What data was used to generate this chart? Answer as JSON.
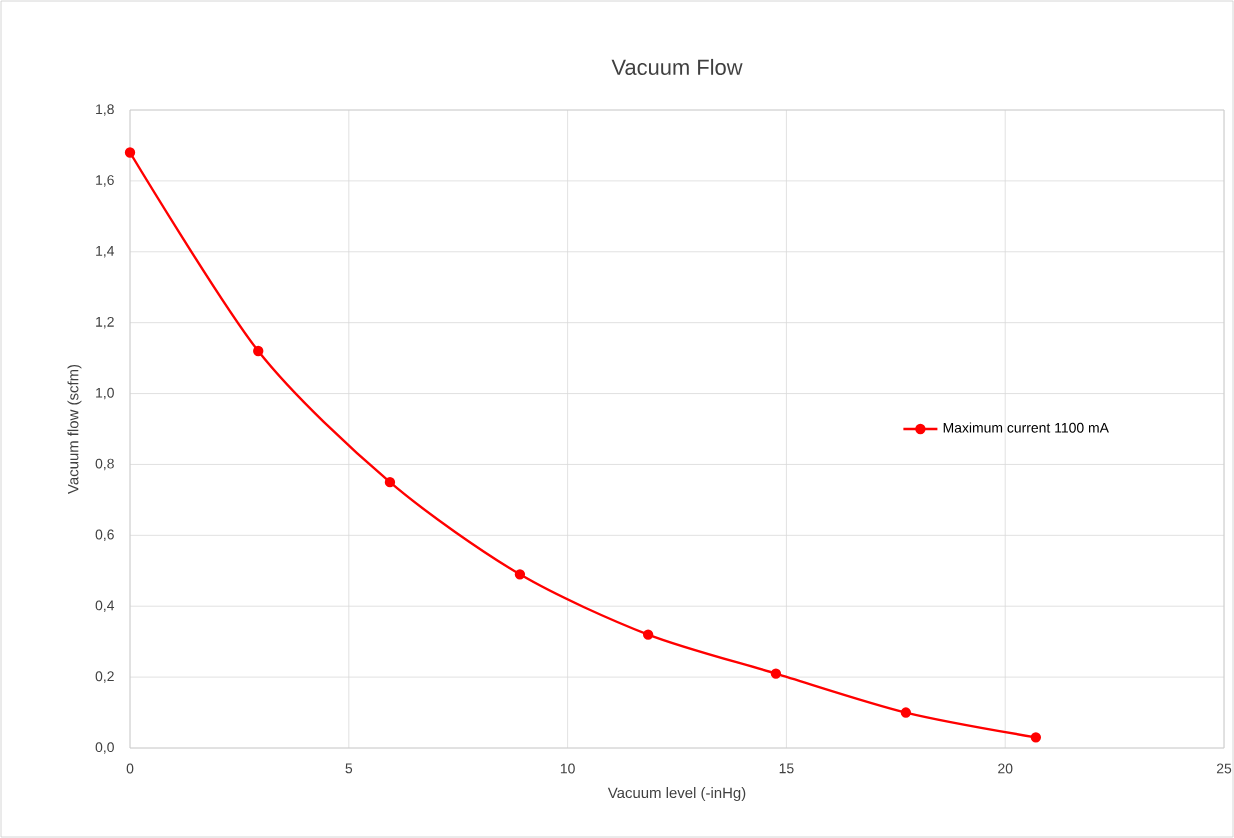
{
  "chart_data": {
    "type": "line",
    "title": "Vacuum Flow",
    "xlabel": "Vacuum level (-inHg)",
    "ylabel": "Vacuum flow (scfm)",
    "x": [
      0,
      2.93,
      5.94,
      8.91,
      11.84,
      14.76,
      17.73,
      20.7
    ],
    "series": [
      {
        "name": "Maximum current 1100 mA",
        "color": "#ff0000",
        "values": [
          1.68,
          1.12,
          0.75,
          0.49,
          0.32,
          0.21,
          0.1,
          0.03
        ]
      }
    ],
    "xlim": [
      0,
      25
    ],
    "xticks": [
      0,
      5,
      10,
      15,
      20,
      25
    ],
    "ylim": [
      0,
      1.8
    ],
    "yticks": [
      {
        "value": 0,
        "label": "0,0"
      },
      {
        "value": 0.2,
        "label": "0,2"
      },
      {
        "value": 0.4,
        "label": "0,4"
      },
      {
        "value": 0.6,
        "label": "0,6"
      },
      {
        "value": 0.8,
        "label": "0,8"
      },
      {
        "value": 1.0,
        "label": "1,0"
      },
      {
        "value": 1.2,
        "label": "1,2"
      },
      {
        "value": 1.4,
        "label": "1,4"
      },
      {
        "value": 1.6,
        "label": "1,6"
      },
      {
        "value": 1.8,
        "label": "1,8"
      }
    ],
    "grid": true,
    "legend": "right",
    "marker": "circle",
    "line_style": "solid"
  }
}
